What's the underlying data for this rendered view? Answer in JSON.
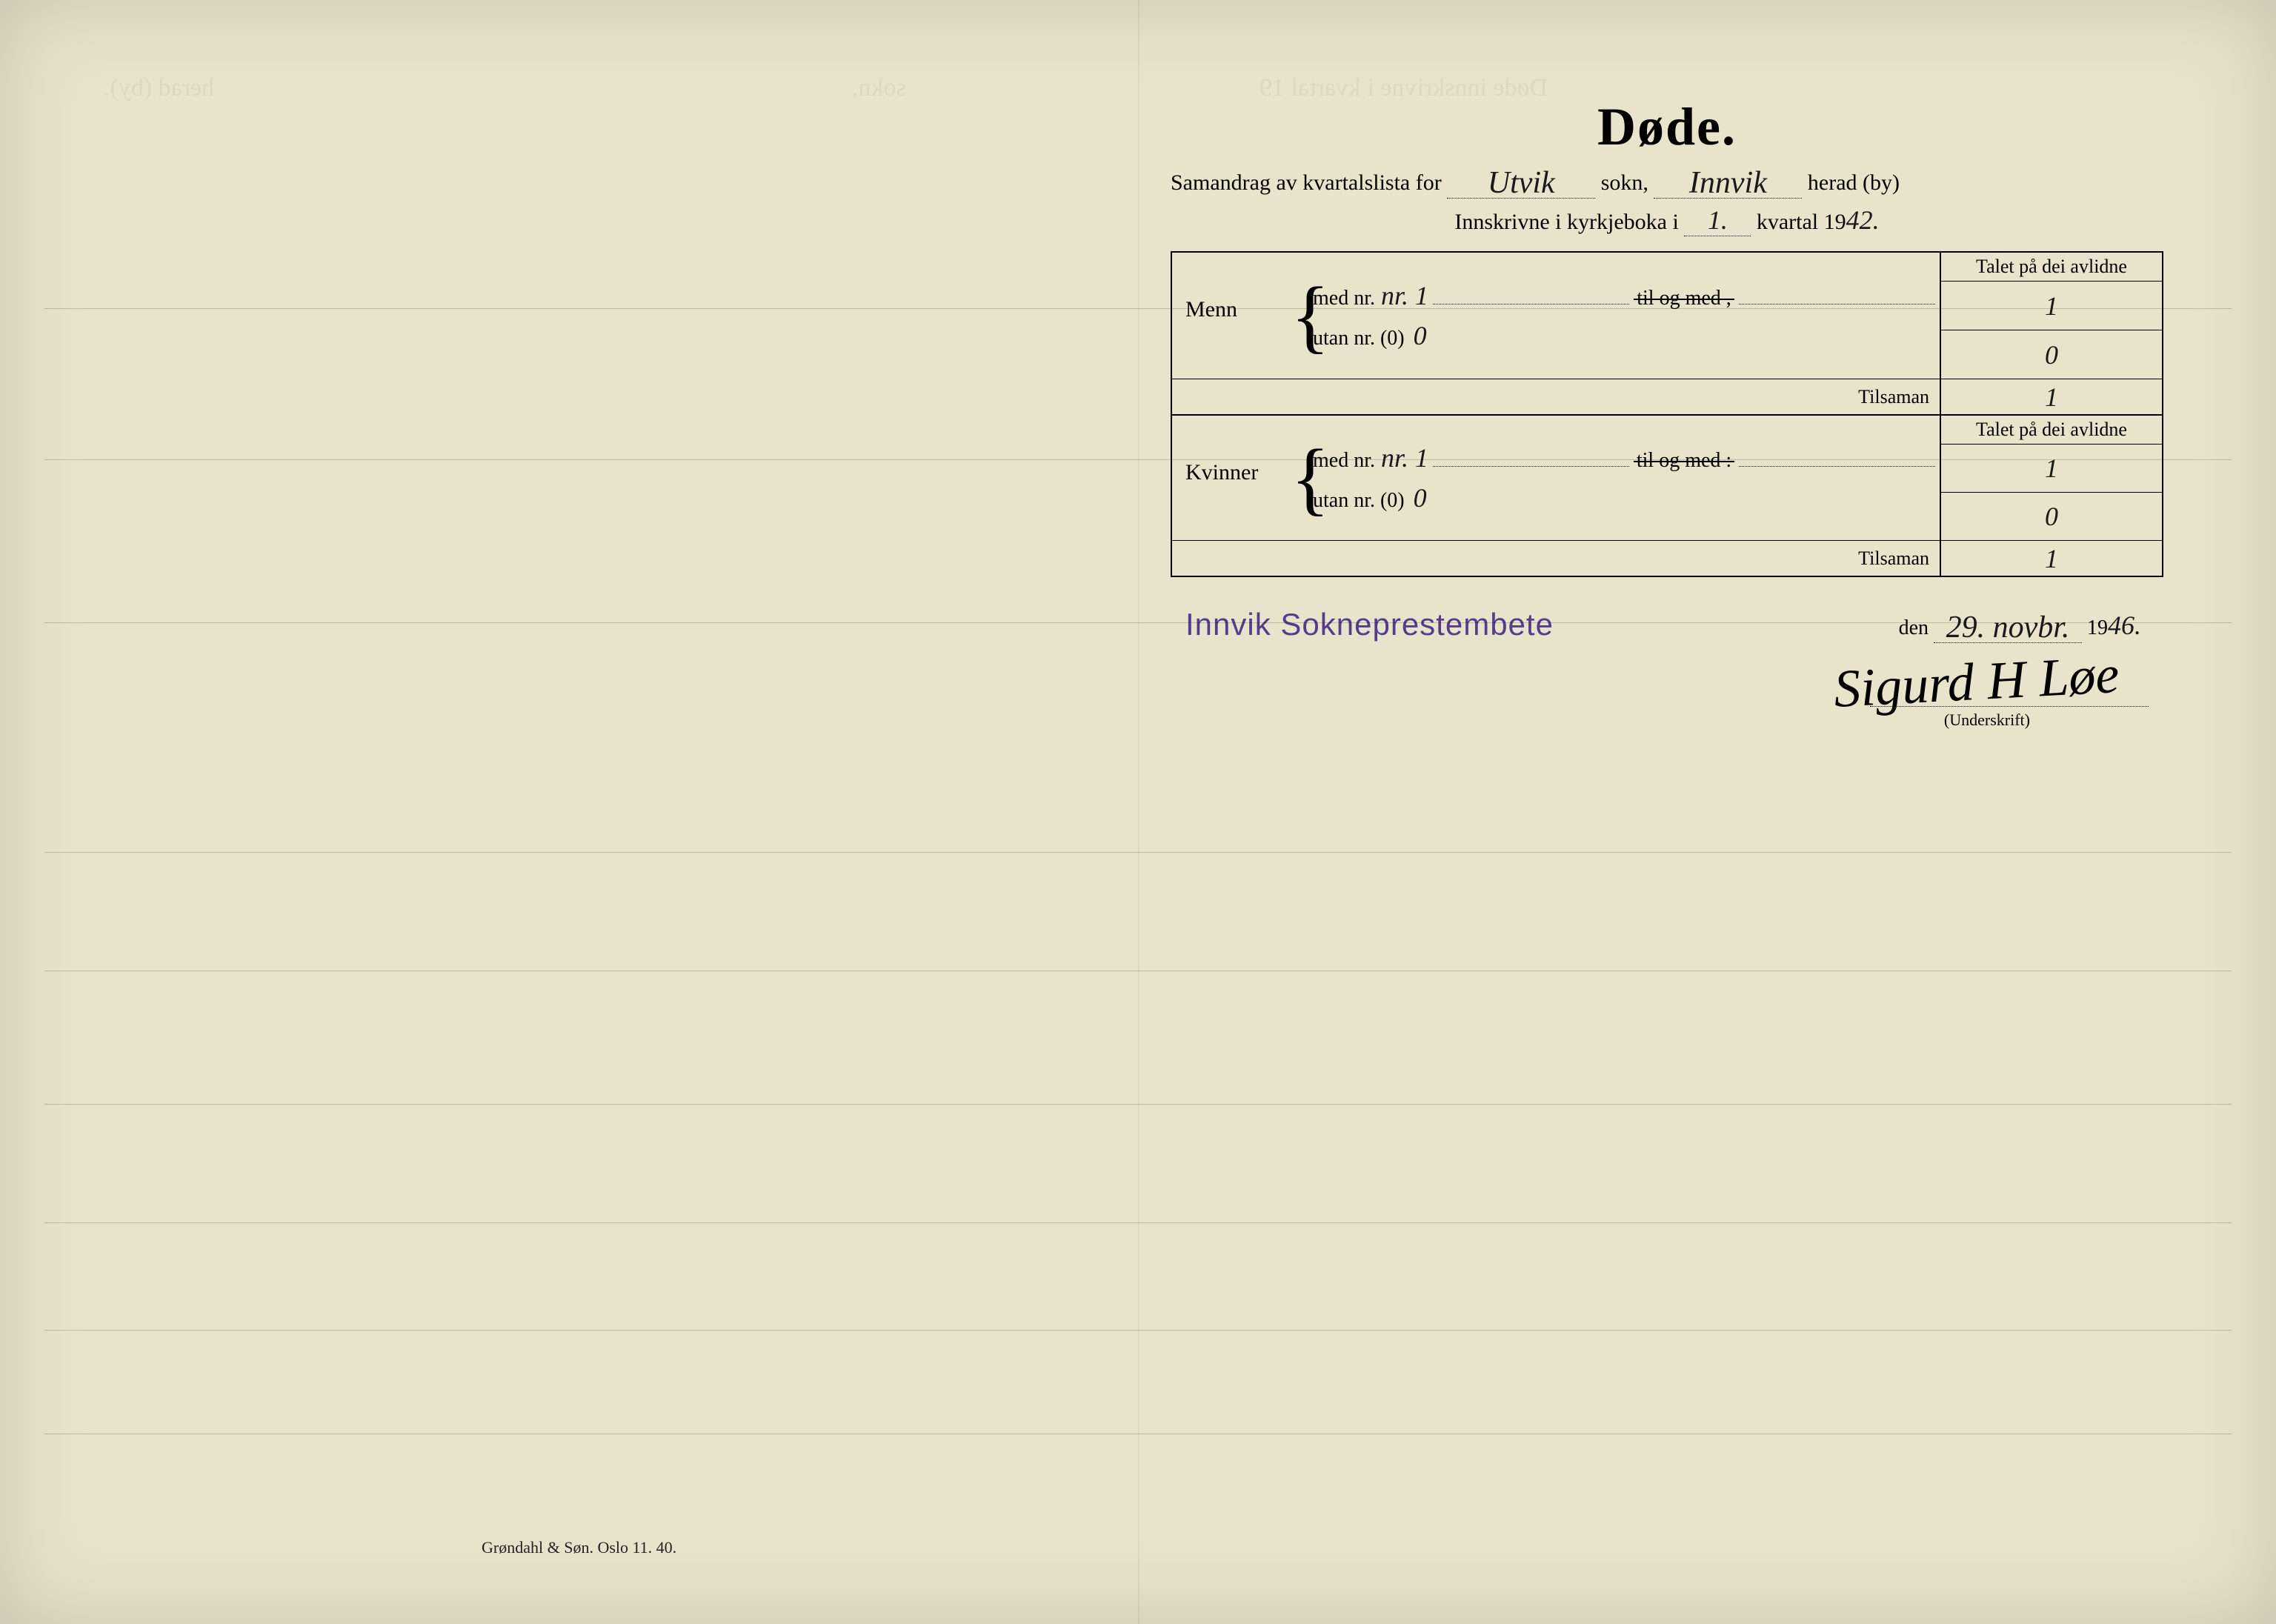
{
  "colors": {
    "paper": "#e8e4cc",
    "ink": "#1a1a1a",
    "stamp": "#5a3a8a",
    "line": "rgba(0,0,0,0.18)"
  },
  "ledger_lines_top": [
    416,
    620,
    840,
    1150,
    1310,
    1490,
    1650,
    1795,
    1935
  ],
  "title": "Døde.",
  "subtitle": {
    "prefix": "Samandrag av kvartalslista for",
    "sokn_value": "Utvik",
    "sokn_label": "sokn,",
    "herad_value": "Innvik",
    "herad_label": "herad (by)"
  },
  "subtitle2": {
    "prefix": "Innskrivne i kyrkjeboka i",
    "kvartal_value": "1.",
    "kvartal_label": "kvartal 19",
    "year_suffix": "42."
  },
  "table": {
    "header": "Talet på dei avlidne",
    "tilsaman_label": "Tilsaman",
    "groups": [
      {
        "label": "Menn",
        "med_nr_label": "med nr.",
        "med_nr_value": "nr. 1",
        "til_og_med": "til og med ,",
        "utan_nr_label": "utan nr. (0)",
        "utan_nr_value": "0",
        "count_med": "1",
        "count_utan": "0",
        "tilsaman": "1"
      },
      {
        "label": "Kvinner",
        "med_nr_label": "med nr.",
        "med_nr_value": "nr. 1",
        "til_og_med": "til og med :",
        "utan_nr_label": "utan nr. (0)",
        "utan_nr_value": "0",
        "count_med": "1",
        "count_utan": "0",
        "tilsaman": "1"
      }
    ]
  },
  "signature": {
    "stamp": "Innvik Sokneprestembete",
    "den_label": "den",
    "date_value": "29. novbr.",
    "year_prefix": "19",
    "year_value": "46.",
    "underskrift_label": "(Underskrift)",
    "signature_scribble": "Sigurd H Løe"
  },
  "printer": "Grøndahl & Søn.  Oslo 11. 40.",
  "bleed": {
    "left": "herad (by).",
    "mid": "sokn,",
    "right": "Døde innskrivne i   kvartal 19"
  }
}
